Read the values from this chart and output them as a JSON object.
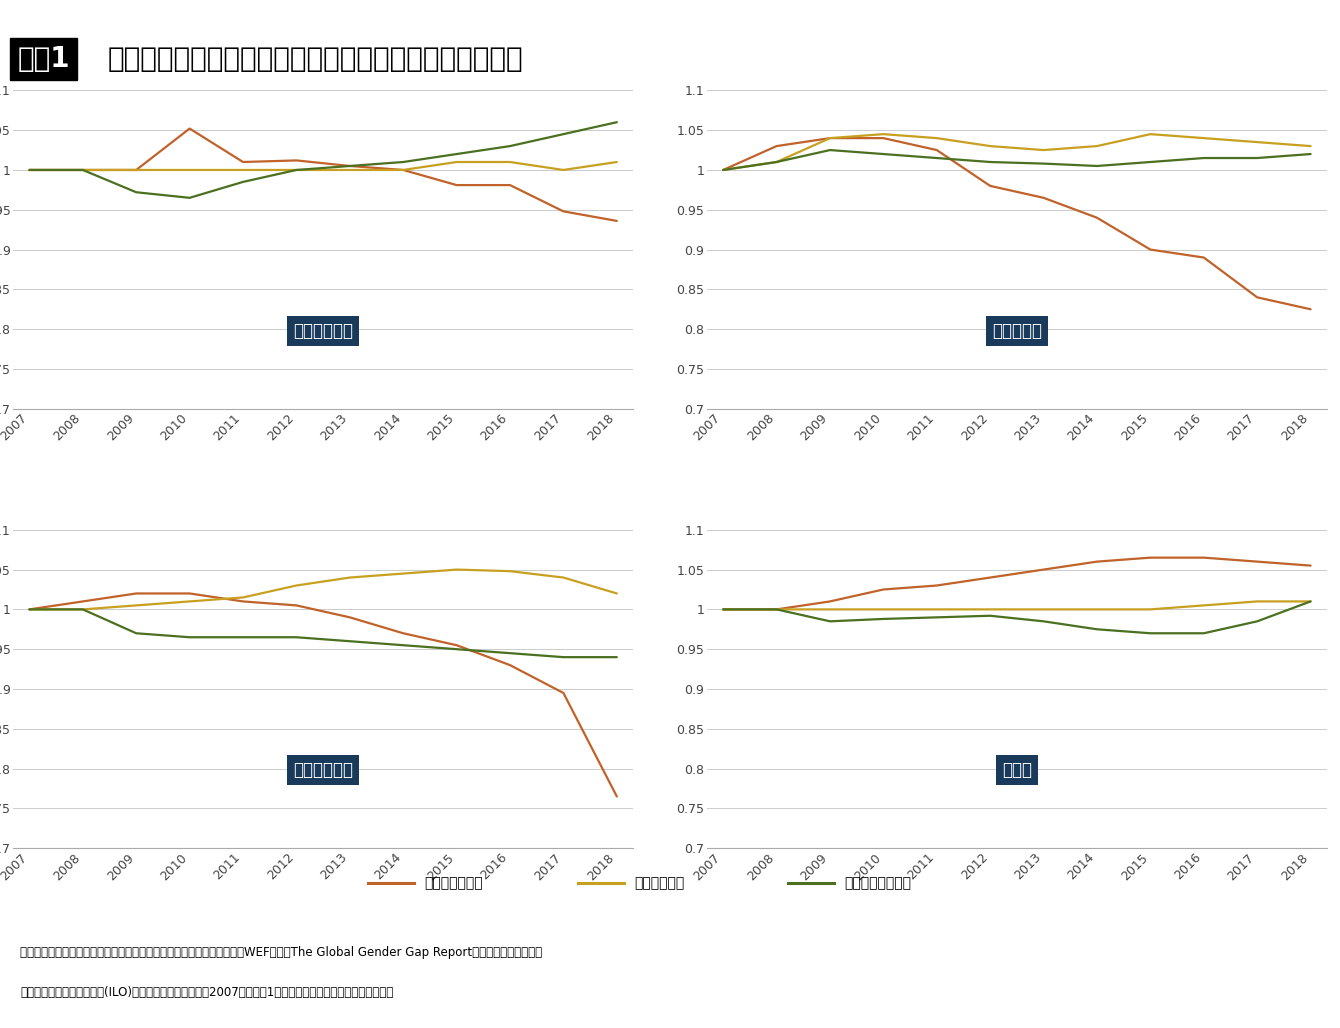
{
  "title": "ジェンダーギャップ指数や就業率は出生率とは関係ない",
  "title_tag": "図表1",
  "years": [
    2007,
    2008,
    2009,
    2010,
    2011,
    2012,
    2013,
    2014,
    2015,
    2016,
    2017,
    2018
  ],
  "subplots": [
    {
      "name": "スウェーデン",
      "fertility": [
        1.0,
        1.0,
        1.0,
        1.052,
        1.01,
        1.012,
        1.005,
        1.0,
        0.981,
        0.981,
        0.948,
        0.936
      ],
      "gender_gap": [
        1.0,
        1.0,
        1.0,
        1.0,
        1.0,
        1.0,
        1.0,
        1.0,
        1.01,
        1.01,
        1.0,
        1.01
      ],
      "employment": [
        1.0,
        1.0,
        0.972,
        0.965,
        0.985,
        1.0,
        1.005,
        1.01,
        1.02,
        1.03,
        1.045,
        1.06
      ]
    },
    {
      "name": "ノルウェー",
      "fertility": [
        1.0,
        1.03,
        1.04,
        1.04,
        1.025,
        0.98,
        0.965,
        0.94,
        0.9,
        0.89,
        0.84,
        0.825
      ],
      "gender_gap": [
        1.0,
        1.01,
        1.04,
        1.045,
        1.04,
        1.03,
        1.025,
        1.03,
        1.045,
        1.04,
        1.035,
        1.03
      ],
      "employment": [
        1.0,
        1.01,
        1.025,
        1.02,
        1.015,
        1.01,
        1.008,
        1.005,
        1.01,
        1.015,
        1.015,
        1.02
      ]
    },
    {
      "name": "フィンランド",
      "fertility": [
        1.0,
        1.01,
        1.02,
        1.02,
        1.01,
        1.005,
        0.99,
        0.97,
        0.955,
        0.93,
        0.895,
        0.765
      ],
      "gender_gap": [
        1.0,
        1.0,
        1.005,
        1.01,
        1.015,
        1.03,
        1.04,
        1.045,
        1.05,
        1.048,
        1.04,
        1.02
      ],
      "employment": [
        1.0,
        1.0,
        0.97,
        0.965,
        0.965,
        0.965,
        0.96,
        0.955,
        0.95,
        0.945,
        0.94,
        0.94
      ]
    },
    {
      "name": "日　本",
      "fertility": [
        1.0,
        1.0,
        1.01,
        1.025,
        1.03,
        1.04,
        1.05,
        1.06,
        1.065,
        1.065,
        1.06,
        1.055
      ],
      "gender_gap": [
        1.0,
        1.0,
        1.0,
        1.0,
        1.0,
        1.0,
        1.0,
        1.0,
        1.0,
        1.005,
        1.01,
        1.01
      ],
      "employment": [
        1.0,
        1.0,
        0.985,
        0.988,
        0.99,
        0.992,
        0.985,
        0.975,
        0.97,
        0.97,
        0.985,
        1.01
      ]
    }
  ],
  "ylim": [
    0.7,
    1.1
  ],
  "yticks": [
    0.7,
    0.75,
    0.8,
    0.85,
    0.9,
    0.95,
    1.0,
    1.05,
    1.1
  ],
  "colors": {
    "fertility": "#C0622A",
    "gender_gap": "#C8A020",
    "employment": "#4A7020"
  },
  "legend_labels": [
    "合計特殊出生率",
    "格差指数全体",
    "就業率パート除く"
  ],
  "footnote_line1": "合計特殊出生率＝世界銀行統計より。格差指数＝世界経済フォーラム（WEF）の「The Global Gender Gap Report」より。就業率（パー",
  "footnote_line2": "トを除く）＝国際労働機関(ILO)推計ベースの統計より、2007年実績を1として荒川和久作成。無断転載禁止。",
  "bg_color": "#FFFFFF",
  "grid_color": "#CCCCCC",
  "label_bg_color": "#1a3a5c",
  "label_text_color": "#FFFFFF"
}
